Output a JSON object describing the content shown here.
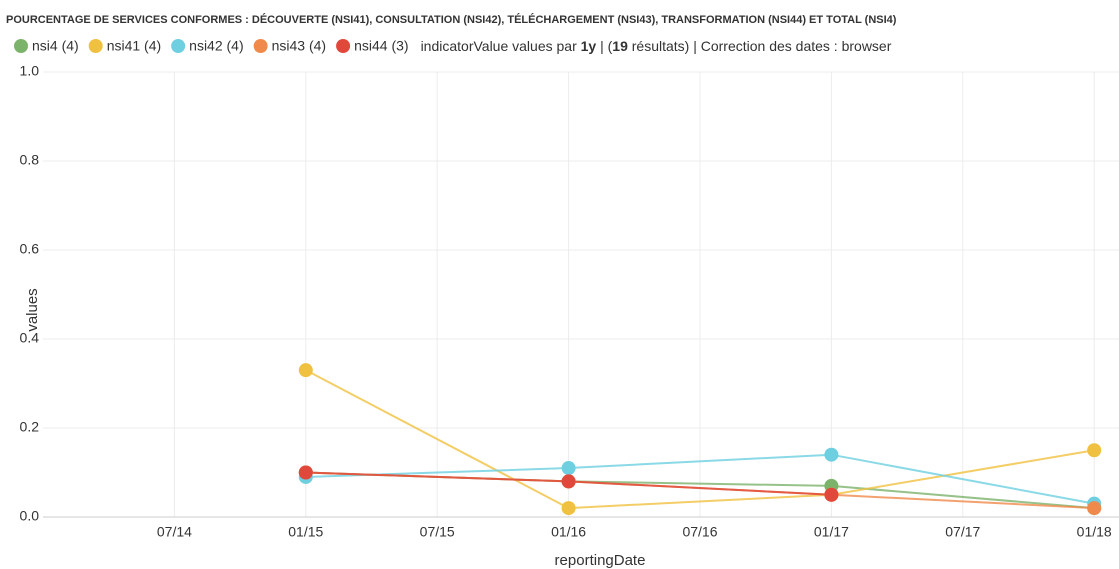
{
  "chart_data": {
    "type": "line",
    "title": "POURCENTAGE DE SERVICES CONFORMES : DÉCOUVERTE (NSI41), CONSULTATION (NSI42), TÉLÉCHARGEMENT (NSI43), TRANSFORMATION (NSI44) ET TOTAL (NSI4)",
    "subtitle_parts": [
      "indicatorValue values par ",
      "1y",
      " | (",
      "19",
      " résultats) | Correction des dates : browser"
    ],
    "x_label": "reportingDate",
    "y_label": "values",
    "x": [
      "01/15",
      "01/16",
      "01/17",
      "01/18"
    ],
    "xticks": [
      "07/14",
      "01/15",
      "07/15",
      "01/16",
      "07/16",
      "01/17",
      "07/17",
      "01/18"
    ],
    "ylim": [
      0,
      1
    ],
    "yticks": [
      {
        "value": 0,
        "label": "0.0"
      },
      0.2,
      0.4,
      0.6,
      0.8,
      {
        "value": 1,
        "label": "1.0"
      }
    ],
    "grid": true,
    "series": [
      {
        "name": "nsi4 (4)",
        "color": "#7cb36b",
        "values": [
          0.1,
          0.08,
          0.07,
          0.02
        ]
      },
      {
        "name": "nsi41 (4)",
        "color": "#f0c040",
        "values": [
          0.33,
          0.02,
          0.05,
          0.15
        ]
      },
      {
        "name": "nsi42 (4)",
        "color": "#6dcfe0",
        "values": [
          0.09,
          0.11,
          0.14,
          0.03
        ]
      },
      {
        "name": "nsi43 (4)",
        "color": "#f08a4b",
        "values": [
          0.1,
          0.08,
          0.05,
          0.02
        ]
      },
      {
        "name": "nsi44 (3)",
        "color": "#e0483b",
        "values": [
          0.1,
          0.08,
          0.05,
          null
        ]
      }
    ]
  }
}
